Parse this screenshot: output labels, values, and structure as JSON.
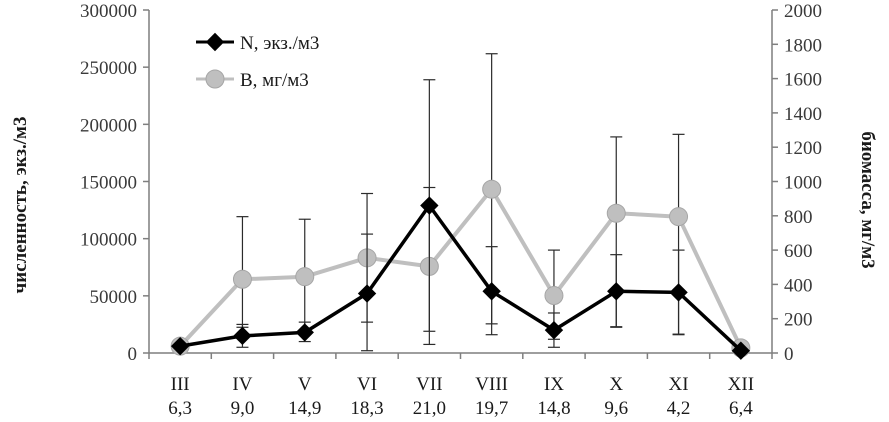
{
  "chart_data": {
    "type": "line",
    "categories": [
      "III",
      "IV",
      "V",
      "VI",
      "VII",
      "VIII",
      "IX",
      "X",
      "XI",
      "XII"
    ],
    "temperatures": [
      "6,3",
      "9,0",
      "14,9",
      "18,3",
      "21,0",
      "19,7",
      "14,8",
      "9,6",
      "4,2",
      "6,4"
    ],
    "ylabel": "численность, экз./м3",
    "y2label": "биомасса, мг/м3",
    "ylim": [
      0,
      300000
    ],
    "y2lim": [
      0,
      2000
    ],
    "yticks": [
      "0",
      "50000",
      "100000",
      "150000",
      "200000",
      "250000",
      "300000"
    ],
    "y2ticks": [
      "0",
      "200",
      "400",
      "600",
      "800",
      "1000",
      "1200",
      "1400",
      "1600",
      "1800",
      "2000"
    ],
    "legend_position": "top-left",
    "grid": false,
    "series": [
      {
        "name": "N, экз./м3",
        "axis": "left",
        "color": "#000000",
        "marker": "diamond",
        "values": [
          6000,
          15000,
          18000,
          52000,
          129000,
          54000,
          20000,
          54000,
          53000,
          2000
        ],
        "error_low": [
          6000,
          5000,
          10000,
          2000,
          19000,
          16000,
          5000,
          23000,
          16000,
          2000
        ],
        "error_high": [
          6000,
          25000,
          27000,
          104000,
          239000,
          93000,
          35000,
          86000,
          90000,
          2000
        ]
      },
      {
        "name": "В, мг/м3",
        "axis": "right",
        "color": "#bfbfbf",
        "marker": "circle",
        "values": [
          40,
          430,
          445,
          555,
          505,
          955,
          335,
          815,
          795,
          30
        ],
        "error_low": [
          40,
          150,
          130,
          180,
          50,
          170,
          80,
          150,
          110,
          30
        ],
        "error_high": [
          40,
          795,
          780,
          930,
          965,
          1745,
          600,
          1260,
          1275,
          30
        ]
      }
    ]
  }
}
